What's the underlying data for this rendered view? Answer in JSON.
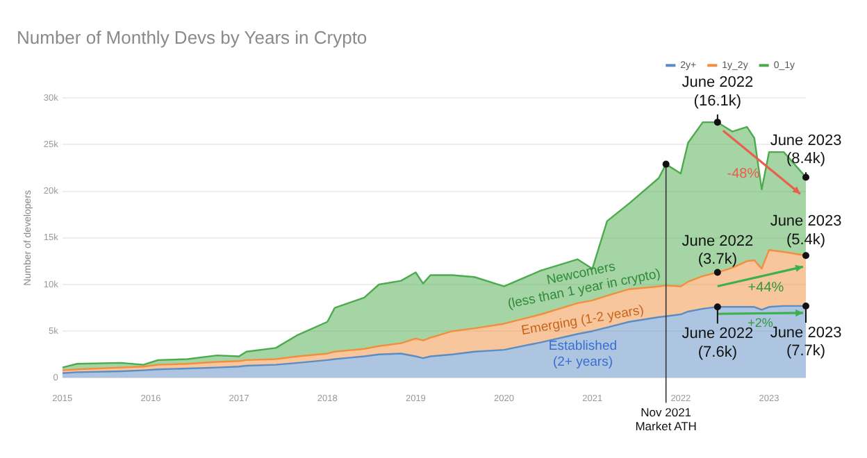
{
  "chart_data": {
    "type": "area",
    "title": "Number of Monthly Devs by Years in Crypto",
    "ylabel": "Number of developers",
    "stacked": true,
    "x": [
      "2015-01",
      "2015-03",
      "2015-09",
      "2015-12",
      "2016-02",
      "2016-06",
      "2016-10",
      "2017-01",
      "2017-02",
      "2017-06",
      "2017-09",
      "2018-01",
      "2018-02",
      "2018-06",
      "2018-08",
      "2018-11",
      "2019-01",
      "2019-02",
      "2019-03",
      "2019-06",
      "2019-09",
      "2020-01",
      "2020-06",
      "2020-11",
      "2021-01",
      "2021-03",
      "2021-06",
      "2021-10",
      "2021-11",
      "2022-01",
      "2022-02",
      "2022-04",
      "2022-06",
      "2022-08",
      "2022-10",
      "2022-11",
      "2022-12",
      "2023-01",
      "2023-03",
      "2023-06"
    ],
    "series": [
      {
        "name": "2y+",
        "color": "#5b8cc4",
        "values": [
          0.5,
          0.6,
          0.7,
          0.8,
          0.9,
          1.0,
          1.1,
          1.2,
          1.3,
          1.4,
          1.6,
          1.9,
          2.0,
          2.3,
          2.5,
          2.6,
          2.3,
          2.1,
          2.3,
          2.5,
          2.8,
          3.0,
          3.8,
          4.7,
          5.0,
          5.4,
          6.0,
          6.5,
          6.6,
          6.8,
          7.1,
          7.4,
          7.6,
          7.6,
          7.6,
          7.6,
          7.3,
          7.6,
          7.7,
          7.7
        ]
      },
      {
        "name": "1y_2y",
        "color": "#f28e3c",
        "values": [
          0.3,
          0.3,
          0.4,
          0.4,
          0.5,
          0.5,
          0.6,
          0.6,
          0.6,
          0.6,
          0.7,
          0.7,
          0.8,
          0.8,
          0.9,
          1.1,
          1.9,
          1.9,
          2.0,
          2.5,
          2.5,
          2.8,
          3.0,
          3.3,
          3.3,
          3.4,
          3.5,
          3.3,
          3.3,
          3.0,
          3.2,
          3.5,
          3.7,
          4.2,
          4.9,
          5.0,
          4.4,
          6.1,
          5.8,
          5.4
        ]
      },
      {
        "name": "0_1y",
        "color": "#4cab4c",
        "values": [
          0.3,
          0.6,
          0.5,
          0.2,
          0.5,
          0.5,
          0.7,
          0.5,
          0.9,
          1.2,
          2.3,
          3.4,
          4.7,
          5.5,
          6.6,
          6.7,
          7.1,
          6.1,
          6.7,
          6.0,
          5.5,
          4.0,
          4.7,
          4.7,
          3.4,
          8.0,
          9.2,
          11.6,
          13.0,
          12.1,
          14.9,
          16.5,
          16.1,
          14.6,
          14.4,
          13.1,
          8.5,
          10.5,
          10.7,
          8.4
        ]
      }
    ],
    "xlim": [
      "2015-01",
      "2023-06"
    ],
    "xticks": [
      "2015",
      "2016",
      "2017",
      "2018",
      "2019",
      "2020",
      "2021",
      "2022",
      "2023"
    ],
    "ylim": [
      0,
      30
    ],
    "yticks": [
      0,
      {
        "value": 5,
        "label": "5k"
      },
      {
        "value": 10,
        "label": "10k"
      },
      {
        "value": 15,
        "label": "15k"
      },
      {
        "value": 20,
        "label": "20k"
      },
      {
        "value": 25,
        "label": "25k"
      },
      {
        "value": 30,
        "label": "30k"
      }
    ],
    "grid": "y",
    "legend": "top right",
    "ref_lines": [
      {
        "axis": "x",
        "value": "2021-11",
        "label": "Nov 2021\nMarket ATH"
      }
    ],
    "annotations": [
      {
        "text": "June 2022\n(16.1k)",
        "x": "2022-06",
        "y": 27.4
      },
      {
        "text": "June 2023\n(8.4k)",
        "x": "2023-06",
        "y": 21.5
      },
      {
        "text": "June 2022\n(3.7k)",
        "x": "2022-06",
        "y": 11.3
      },
      {
        "text": "June 2023\n(5.4k)",
        "x": "2023-06",
        "y": 13.1
      },
      {
        "text": "June 2022\n(7.6k)",
        "x": "2022-06",
        "y": 7.6
      },
      {
        "text": "June 2023\n(7.7k)",
        "x": "2023-06",
        "y": 7.7
      },
      {
        "text": "-48%",
        "x": "2022-11",
        "y": 23.5
      },
      "+44%",
      "+2%",
      "Newcomers\n(less than 1 year in crypto)",
      "Emerging (1-2 years)",
      "Established\n(2+ years)"
    ]
  }
}
